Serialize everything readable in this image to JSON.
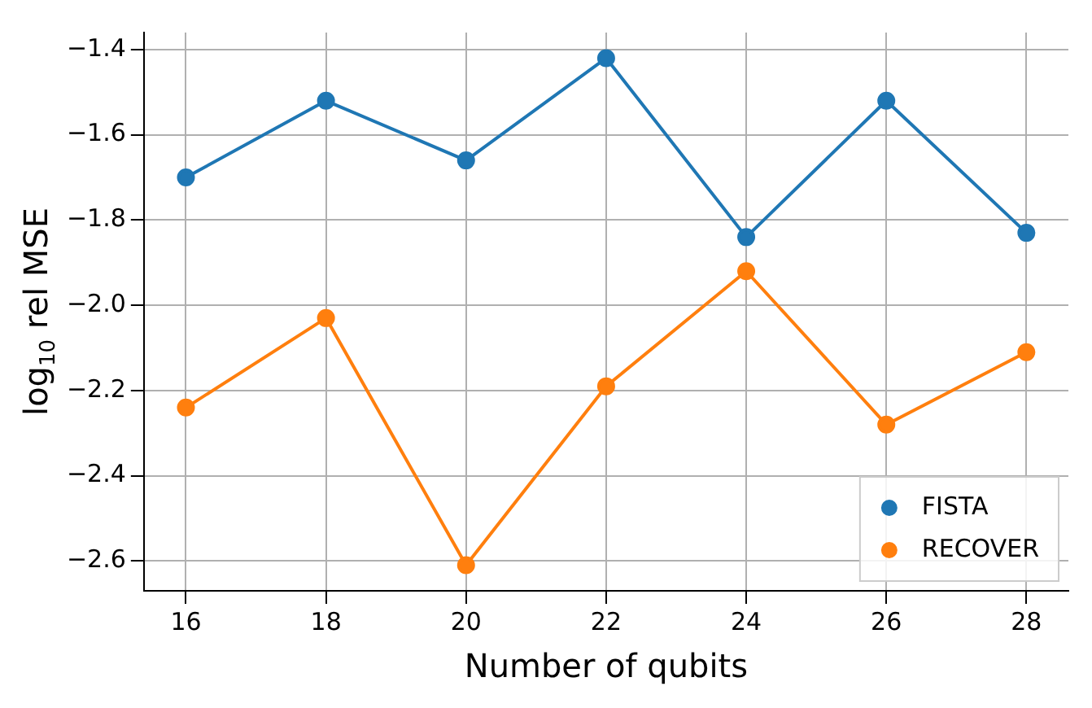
{
  "chart_data": {
    "type": "line",
    "xlabel": "Number of qubits",
    "ylabel": "log$_{10}$ rel MSE",
    "x": [
      16,
      18,
      20,
      22,
      24,
      26,
      28
    ],
    "series": [
      {
        "name": "FISTA",
        "color": "#1f77b4",
        "values": [
          -1.7,
          -1.52,
          -1.66,
          -1.42,
          -1.84,
          -1.52,
          -1.83
        ]
      },
      {
        "name": "RECOVER",
        "color": "#ff7f0e",
        "values": [
          -2.24,
          -2.03,
          -2.61,
          -2.19,
          -1.92,
          -2.28,
          -2.11
        ]
      }
    ],
    "xlim": [
      15.4,
      28.6
    ],
    "xticks": [
      16,
      18,
      20,
      22,
      24,
      26,
      28
    ],
    "ylim": [
      -2.67,
      -1.36
    ],
    "yticks": [
      -2.6,
      -2.4,
      -2.2,
      {
        "value": -2.0,
        "label": "−2.0"
      },
      -1.8,
      -1.6,
      -1.4
    ],
    "grid": true,
    "legend": "bottom right",
    "marker": "circle"
  }
}
